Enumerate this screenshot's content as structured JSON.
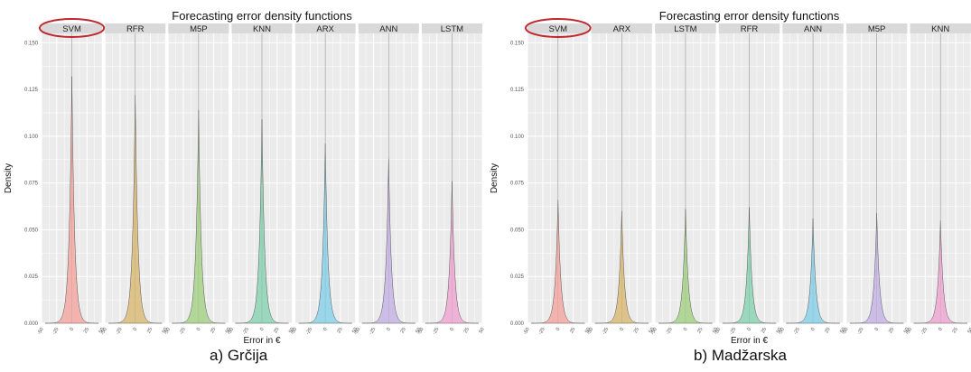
{
  "chart_data": [
    {
      "type": "area",
      "title": "Forecasting error density functions",
      "caption": "a) Grčija",
      "xlabel": "Error in €",
      "ylabel": "Density",
      "ylim": [
        0,
        0.155
      ],
      "yticks": [
        "0.000",
        "0.025",
        "0.050",
        "0.075",
        "0.100",
        "0.125",
        "0.150"
      ],
      "xticks": [
        "-50",
        "-25",
        "0",
        "25",
        "50"
      ],
      "xlim": [
        -50,
        50
      ],
      "grid": true,
      "highlighted_panel": "SVM",
      "panels": [
        {
          "name": "SVM",
          "peak": 0.132,
          "color": "#f4a09a"
        },
        {
          "name": "RFR",
          "peak": 0.122,
          "color": "#d8b66a"
        },
        {
          "name": "M5P",
          "peak": 0.114,
          "color": "#9fcf7c"
        },
        {
          "name": "KNN",
          "peak": 0.109,
          "color": "#7fd0ae"
        },
        {
          "name": "ARX",
          "peak": 0.096,
          "color": "#7fcfe8"
        },
        {
          "name": "ANN",
          "peak": 0.088,
          "color": "#c2aee6"
        },
        {
          "name": "LSTM",
          "peak": 0.076,
          "color": "#ef9fcf"
        }
      ]
    },
    {
      "type": "area",
      "title": "Forecasting error density functions",
      "caption": "b) Madžarska",
      "xlabel": "Error in €",
      "ylabel": "Density",
      "ylim": [
        0,
        0.155
      ],
      "yticks": [
        "0.000",
        "0.025",
        "0.050",
        "0.075",
        "0.100",
        "0.125",
        "0.150"
      ],
      "xticks": [
        "-50",
        "-25",
        "0",
        "25",
        "50"
      ],
      "xlim": [
        -50,
        50
      ],
      "grid": true,
      "highlighted_panel": "SVM",
      "panels": [
        {
          "name": "SVM",
          "peak": 0.066,
          "color": "#f4a09a"
        },
        {
          "name": "ARX",
          "peak": 0.06,
          "color": "#d8b66a"
        },
        {
          "name": "LSTM",
          "peak": 0.061,
          "color": "#9fcf7c"
        },
        {
          "name": "RFR",
          "peak": 0.062,
          "color": "#7fd0ae"
        },
        {
          "name": "ANN",
          "peak": 0.056,
          "color": "#7fcfe8"
        },
        {
          "name": "M5P",
          "peak": 0.059,
          "color": "#c2aee6"
        },
        {
          "name": "KNN",
          "peak": 0.055,
          "color": "#ef9fcf"
        }
      ]
    }
  ]
}
